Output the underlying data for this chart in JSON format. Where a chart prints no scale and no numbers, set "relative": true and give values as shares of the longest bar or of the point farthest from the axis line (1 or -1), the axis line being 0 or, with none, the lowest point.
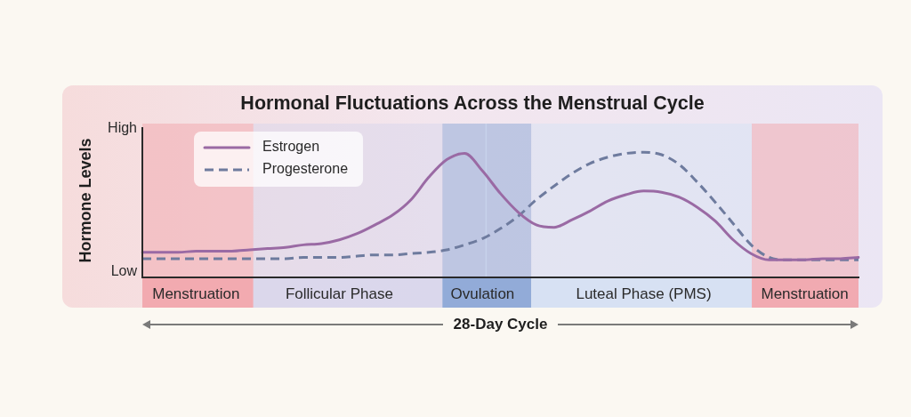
{
  "chart_data": {
    "type": "line",
    "title": "Hormonal Fluctuations Across the Menstrual Cycle",
    "ylabel": "Hormone Levels",
    "xlabel": "28-Day Cycle",
    "relative": true,
    "legend": "top left",
    "marker": "none",
    "categories": [
      null,
      null,
      null,
      "Menstruation",
      null,
      null,
      null,
      null,
      null,
      null,
      null,
      "Follicular Phase",
      null,
      null,
      null,
      null,
      null,
      null,
      null,
      "Ovulation",
      null,
      null,
      null,
      null,
      null,
      null,
      null,
      null,
      "Luteal Phase (PMS)",
      null,
      null,
      null,
      null,
      null,
      null,
      null,
      null,
      "Menstruation",
      null,
      null,
      null
    ],
    "series": [
      {
        "name": "Estrogen",
        "color": "#9a6aa4",
        "line_style": "solid",
        "values": [
          0.2,
          0.2,
          0.2,
          0.21,
          0.21,
          0.21,
          0.22,
          0.23,
          0.24,
          0.26,
          0.27,
          0.3,
          0.35,
          0.42,
          0.5,
          0.62,
          0.8,
          0.94,
          0.99,
          0.85,
          0.67,
          0.52,
          0.42,
          0.4,
          0.46,
          0.53,
          0.61,
          0.66,
          0.69,
          0.68,
          0.64,
          0.56,
          0.45,
          0.3,
          0.19,
          0.14,
          0.14,
          0.14,
          0.15,
          0.15,
          0.16
        ]
      },
      {
        "name": "Progesterone",
        "color": "#6e7b9e",
        "line_style": "dashed",
        "values": [
          0.15,
          0.15,
          0.15,
          0.15,
          0.15,
          0.15,
          0.15,
          0.15,
          0.15,
          0.16,
          0.16,
          0.16,
          0.17,
          0.18,
          0.18,
          0.19,
          0.2,
          0.22,
          0.26,
          0.31,
          0.39,
          0.49,
          0.62,
          0.73,
          0.83,
          0.91,
          0.96,
          0.99,
          1.0,
          0.98,
          0.9,
          0.76,
          0.6,
          0.43,
          0.26,
          0.16,
          0.14,
          0.14,
          0.14,
          0.14,
          0.14
        ]
      }
    ],
    "annotations": [
      "High",
      "Low"
    ]
  }
}
